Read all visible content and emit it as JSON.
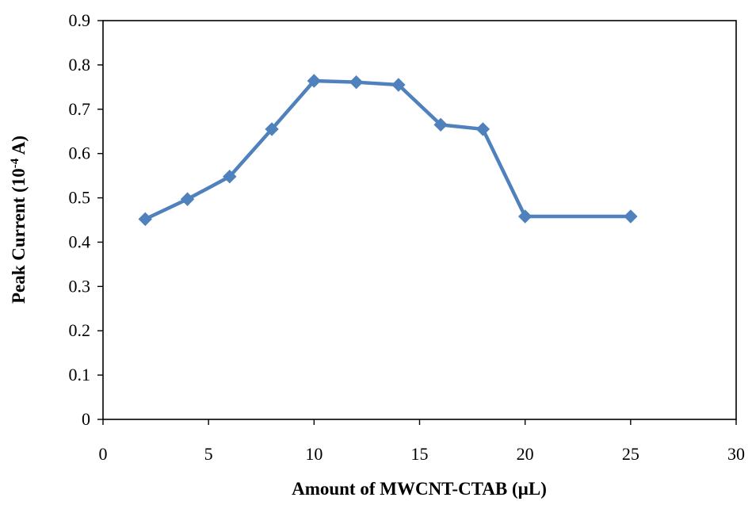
{
  "chart_data": {
    "type": "line",
    "title": "",
    "xlabel": "Amount of MWCNT-CTAB (µL)",
    "ylabel": {
      "prefix": "Peak Current (10",
      "superscript": "-4",
      "suffix": " A)"
    },
    "xlim": [
      0,
      30
    ],
    "ylim": [
      0,
      0.9
    ],
    "x_ticks": [
      "0",
      "5",
      "10",
      "15",
      "20",
      "25",
      "30"
    ],
    "y_ticks": [
      "0",
      "0.1",
      "0.2",
      "0.3",
      "0.4",
      "0.5",
      "0.6",
      "0.7",
      "0.8",
      "0.9"
    ],
    "grid": false,
    "legend": "none",
    "marker": "diamond",
    "color": "#4f81bd",
    "series": [
      {
        "x": [
          2,
          4,
          6,
          8,
          10,
          12,
          14,
          16,
          18,
          20,
          25
        ],
        "y": [
          0.452,
          0.497,
          0.548,
          0.655,
          0.764,
          0.761,
          0.755,
          0.665,
          0.655,
          0.458,
          0.458
        ]
      }
    ]
  }
}
